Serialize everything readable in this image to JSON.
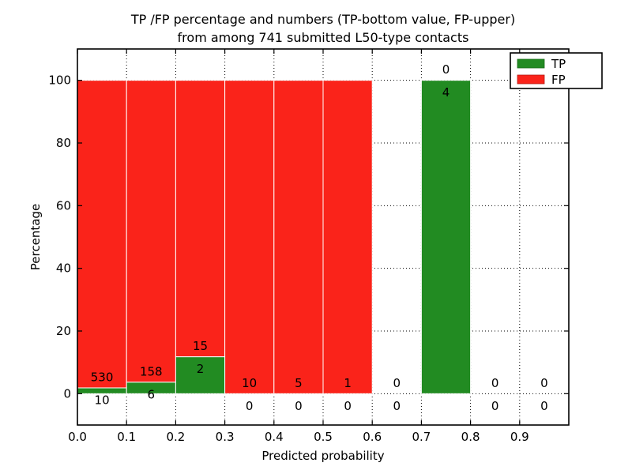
{
  "chart_data": {
    "type": "bar",
    "stacked": true,
    "title_line1": "TP /FP percentage and numbers (TP-bottom value, FP-upper)",
    "title_line2": "from among 741 submitted L50-type contacts",
    "xlabel": "Predicted probability",
    "ylabel": "Percentage",
    "x_ticks": [
      "0.0",
      "0.1",
      "0.2",
      "0.3",
      "0.4",
      "0.5",
      "0.6",
      "0.7",
      "0.8",
      "0.9"
    ],
    "y_ticks": [
      "0",
      "20",
      "40",
      "60",
      "80",
      "100"
    ],
    "xlim": [
      0,
      1.0
    ],
    "ylim": [
      -10,
      110
    ],
    "bin_width": 0.1,
    "grid": "dotted",
    "total_contacts": 741,
    "categories": [
      "0.0-0.1",
      "0.1-0.2",
      "0.2-0.3",
      "0.3-0.4",
      "0.4-0.5",
      "0.5-0.6",
      "0.6-0.7",
      "0.7-0.8",
      "0.8-0.9",
      "0.9-1.0"
    ],
    "series": [
      {
        "name": "TP",
        "color": "#228b22",
        "counts": [
          10,
          6,
          2,
          0,
          0,
          0,
          0,
          4,
          0,
          0
        ]
      },
      {
        "name": "FP",
        "color": "#fa231a",
        "counts": [
          530,
          158,
          15,
          10,
          5,
          1,
          0,
          0,
          0,
          0
        ]
      }
    ],
    "tp_percent": [
      1.85,
      3.66,
      11.76,
      0,
      0,
      0,
      null,
      100,
      null,
      null
    ],
    "legend": {
      "position": "upper-right",
      "entries": [
        {
          "label": "TP",
          "color": "#228b22"
        },
        {
          "label": "FP",
          "color": "#fa231a"
        }
      ]
    },
    "bar_edge_color": "#ffffff",
    "axis_color": "#000000"
  }
}
